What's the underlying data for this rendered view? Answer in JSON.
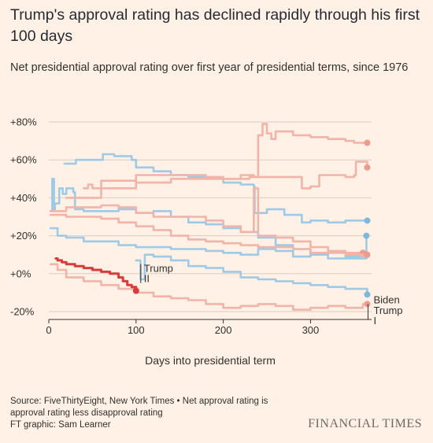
{
  "header": {
    "title": "Trump's approval rating has declined rapidly through his first 100 days",
    "subtitle": "Net presidential approval rating over first year of presidential terms, since 1976"
  },
  "footer": {
    "source": "Source: FiveThirtyEight, New York Times • Net approval rating is approval rating less disapproval rating",
    "credit": "FT graphic: Sam Learner",
    "brand": "FINANCIAL TIMES"
  },
  "colors": {
    "background": "#FFF1E5",
    "republican": "#F2B4A8",
    "democrat": "#9FCAE6",
    "democrat_marker": "#7FB8DE",
    "trump2": "#D93B3B",
    "grid": "#D9CCC1",
    "axis": "#33302E"
  },
  "chart_data": {
    "type": "line",
    "xlabel": "Days into presidential term",
    "ylabel": "",
    "xlim": [
      0,
      370
    ],
    "ylim": [
      -20,
      80
    ],
    "x_ticks": [
      0,
      100,
      200,
      300
    ],
    "x_tick_labels": [
      "0",
      "100",
      "200",
      "300"
    ],
    "y_ticks": [
      80,
      60,
      40,
      20,
      0,
      -20
    ],
    "y_tick_labels": [
      "+80%",
      "+60%",
      "+40%",
      "+20%",
      "+0%",
      "-20%"
    ],
    "grid": true,
    "series": [
      {
        "name": "",
        "party": "democrat",
        "x": [
          18,
          30,
          31,
          60,
          62,
          75,
          95,
          100,
          101,
          120,
          140,
          160,
          180,
          200,
          220,
          235,
          236,
          250,
          270,
          290,
          300,
          320,
          340,
          365
        ],
        "y": [
          58,
          58,
          60,
          60,
          63,
          62,
          60,
          56,
          56,
          54,
          52,
          51,
          50,
          48,
          47,
          46,
          32,
          34,
          31,
          27,
          28,
          27,
          28,
          28
        ]
      },
      {
        "name": "",
        "party": "democrat",
        "x": [
          2,
          4,
          6,
          7,
          12,
          16,
          20,
          28,
          30,
          40,
          60,
          80,
          100,
          120,
          140,
          160,
          180,
          200,
          220,
          240,
          260,
          280,
          300,
          320,
          340,
          360,
          364
        ],
        "y": [
          33,
          50,
          34,
          37,
          45,
          42,
          45,
          43,
          34,
          33,
          33,
          34,
          32,
          33,
          30,
          27,
          26,
          24,
          22,
          19,
          15,
          13,
          10,
          11,
          9,
          8,
          20
        ]
      },
      {
        "name": "",
        "party": "democrat",
        "x": [
          2,
          10,
          20,
          40,
          60,
          80,
          100,
          120,
          140,
          160,
          180,
          200,
          220,
          240,
          260,
          280,
          300,
          320,
          340,
          360,
          365
        ],
        "y": [
          24,
          20,
          19,
          17,
          17,
          15,
          14,
          14,
          13,
          13,
          12,
          11,
          10,
          13,
          12,
          9,
          10,
          8,
          8,
          10,
          10
        ]
      },
      {
        "name": "Biden",
        "party": "democrat",
        "x": [
          100,
          105,
          110,
          120,
          140,
          160,
          180,
          200,
          220,
          240,
          260,
          280,
          300,
          320,
          340,
          365
        ],
        "y": [
          7,
          -3,
          10,
          9,
          7,
          4,
          3,
          1,
          -2,
          -3,
          -4,
          -5,
          -6,
          -7,
          -8,
          -11
        ]
      },
      {
        "name": "",
        "party": "republican",
        "x": [
          20,
          60,
          100,
          140,
          170,
          200,
          230,
          240,
          245,
          250,
          255,
          260,
          280,
          300,
          320,
          340,
          350,
          365
        ],
        "y": [
          40,
          49,
          48,
          50,
          50,
          50,
          51,
          73,
          79,
          74,
          71,
          75,
          73,
          72,
          71,
          70,
          69,
          69
        ]
      },
      {
        "name": "",
        "party": "republican",
        "x": [
          40,
          45,
          50,
          100,
          140,
          180,
          200,
          220,
          235,
          250,
          270,
          290,
          300,
          310,
          320,
          340,
          350,
          352,
          365
        ],
        "y": [
          45,
          47,
          45,
          52,
          52,
          51,
          50,
          52,
          51,
          51,
          51,
          45,
          46,
          52,
          52,
          51,
          52,
          59,
          56
        ]
      },
      {
        "name": "",
        "party": "republican",
        "x": [
          2,
          20,
          40,
          60,
          80,
          100,
          120,
          140,
          160,
          180,
          200,
          220,
          230,
          235,
          240,
          260,
          280,
          300,
          320,
          340,
          360
        ],
        "y": [
          33,
          35,
          35,
          36,
          35,
          32,
          30,
          30,
          30,
          28,
          25,
          22,
          22,
          45,
          20,
          19,
          17,
          14,
          12,
          11,
          11
        ]
      },
      {
        "name": "",
        "party": "republican",
        "x": [
          2,
          20,
          40,
          60,
          80,
          100,
          120,
          140,
          160,
          180,
          200,
          220,
          240,
          260,
          280,
          300,
          320,
          340,
          360,
          365
        ],
        "y": [
          31,
          30,
          30,
          29,
          27,
          25,
          23,
          20,
          18,
          17,
          16,
          15,
          14,
          14,
          13,
          11,
          11,
          10,
          9,
          10
        ]
      },
      {
        "name": "Trump I",
        "party": "republican",
        "x": [
          2,
          10,
          20,
          40,
          60,
          80,
          100,
          120,
          140,
          160,
          180,
          200,
          220,
          240,
          260,
          280,
          300,
          320,
          340,
          360,
          365
        ],
        "y": [
          5,
          2,
          -2,
          -4,
          -6,
          -8,
          -10,
          -12,
          -13,
          -14,
          -16,
          -18,
          -17,
          -16,
          -17,
          -19,
          -18,
          -17,
          -18,
          -16,
          -16
        ]
      },
      {
        "name": "Trump II",
        "party": "trump2",
        "x": [
          8,
          10,
          15,
          20,
          30,
          40,
          50,
          60,
          70,
          80,
          85,
          90,
          95,
          100
        ],
        "y": [
          8,
          7,
          6,
          5,
          4,
          3,
          2,
          1,
          0,
          -2,
          -4,
          -6,
          -7,
          -9
        ]
      }
    ]
  }
}
